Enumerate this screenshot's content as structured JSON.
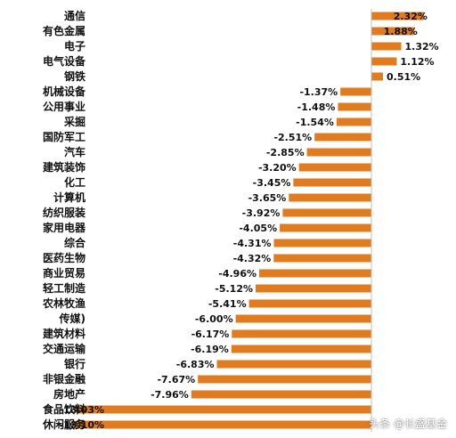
{
  "chart_data": {
    "type": "bar",
    "orientation": "horizontal",
    "categories": [
      "通信",
      "有色金属",
      "电子",
      "电气设备",
      "钢铁",
      "机械设备",
      "公用事业",
      "采掘",
      "国防军工",
      "汽车",
      "建筑装饰",
      "化工",
      "计算机",
      "纺织服装",
      "家用电器",
      "综合",
      "医药生物",
      "商业贸易",
      "轻工制造",
      "农林牧渔",
      "传媒",
      "建筑材料",
      "交通运输",
      "银行",
      "非银金融",
      "房地产",
      "食品饮料",
      "休闲服务"
    ],
    "values": [
      2.32,
      1.88,
      1.32,
      1.12,
      0.51,
      -1.37,
      -1.48,
      -1.54,
      -2.51,
      -2.85,
      -3.2,
      -3.45,
      -3.65,
      -3.92,
      -4.05,
      -4.31,
      -4.32,
      -4.96,
      -5.12,
      -5.41,
      -6.0,
      -6.17,
      -6.19,
      -6.83,
      -7.67,
      -7.96,
      -13.03,
      -13.1
    ],
    "value_labels": [
      "2.32%",
      "1.88%",
      "1.32%",
      "1.12%",
      "0.51%",
      "-1.37%",
      "-1.48%",
      "-1.54%",
      "-2.51%",
      "-2.85%",
      "-3.20%",
      "-3.45%",
      "-3.65%",
      "-3.92%",
      "-4.05%",
      "-4.31%",
      "-4.32%",
      "-4.96%",
      "-5.12%",
      "-5.41%",
      "-6.00%",
      "-6.17%",
      "-6.19%",
      "-6.83%",
      "-7.67%",
      "-7.96%",
      "-13.03%",
      "-13.10%"
    ],
    "category_labels": [
      "通信",
      "有色金属",
      "电子",
      "电气设备",
      "钢铁",
      "机械设备",
      "公用事业",
      "采掘",
      "国防军工",
      "汽车",
      "建筑装饰",
      "化工",
      "计算机",
      "纺织服装",
      "家用电器",
      "综合",
      "医药生物",
      "商业贸易",
      "轻工制造",
      "农林牧渔",
      "传媒)",
      "建筑材料",
      "交通运输",
      "银行",
      "非银金融",
      "房地产",
      "食品饮料",
      "休闲服务"
    ],
    "units": "%",
    "title": "",
    "xlabel": "",
    "ylabel": "",
    "xlim": [
      -13.5,
      2.8
    ],
    "bar_color": "#E07B1F",
    "grid": false,
    "legend": "none"
  },
  "watermark": "头条 @长盛基金"
}
